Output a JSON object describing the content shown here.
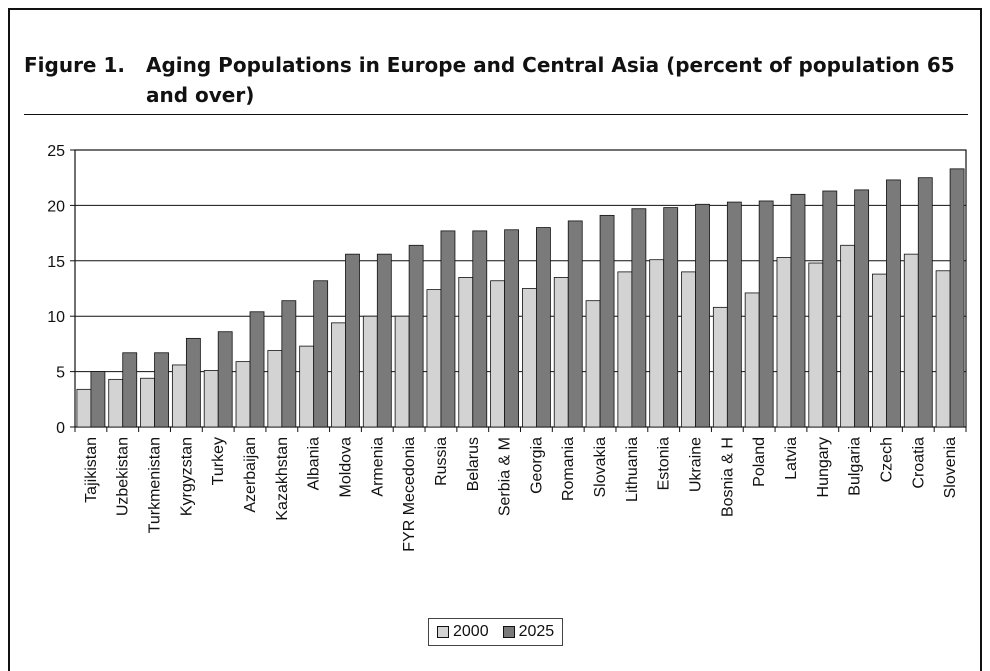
{
  "figure": {
    "number": "Figure 1.",
    "title": "Aging Populations in Europe and Central Asia (percent of population 65 and over)"
  },
  "chart_data": {
    "type": "bar",
    "title": "Aging Populations in Europe and Central Asia (percent of population 65 and over)",
    "xlabel": "",
    "ylabel": "",
    "ylim": [
      0,
      25
    ],
    "yticks": [
      0,
      5,
      10,
      15,
      20,
      25
    ],
    "grid": "horizontal",
    "legend_position": "bottom",
    "categories": [
      "Tajikistan",
      "Uzbekistan",
      "Turkmenistan",
      "Kyrgyzstan",
      "Turkey",
      "Azerbaijan",
      "Kazakhstan",
      "Albania",
      "Moldova",
      "Armenia",
      "FYR Mecedonia",
      "Russia",
      "Belarus",
      "Serbia & M",
      "Georgia",
      "Romania",
      "Slovakia",
      "Lithuania",
      "Estonia",
      "Ukraine",
      "Bosnia & H",
      "Poland",
      "Latvia",
      "Hungary",
      "Bulgaria",
      "Czech",
      "Croatia",
      "Slovenia"
    ],
    "series": [
      {
        "name": "2000",
        "color": "#d3d3d3",
        "values": [
          3.4,
          4.3,
          4.4,
          5.6,
          5.1,
          5.9,
          6.9,
          7.3,
          9.4,
          10.0,
          10.0,
          12.4,
          13.5,
          13.2,
          12.5,
          13.5,
          11.4,
          14.0,
          15.1,
          14.0,
          10.8,
          12.1,
          15.3,
          14.8,
          16.4,
          13.8,
          15.6,
          14.1
        ]
      },
      {
        "name": "2025",
        "color": "#7a7a7a",
        "values": [
          5.0,
          6.7,
          6.7,
          8.0,
          8.6,
          10.4,
          11.4,
          13.2,
          15.6,
          15.6,
          16.4,
          17.7,
          17.7,
          17.8,
          18.0,
          18.6,
          19.1,
          19.7,
          19.8,
          20.1,
          20.3,
          20.4,
          21.0,
          21.3,
          21.4,
          22.3,
          22.5,
          23.3
        ]
      }
    ]
  }
}
